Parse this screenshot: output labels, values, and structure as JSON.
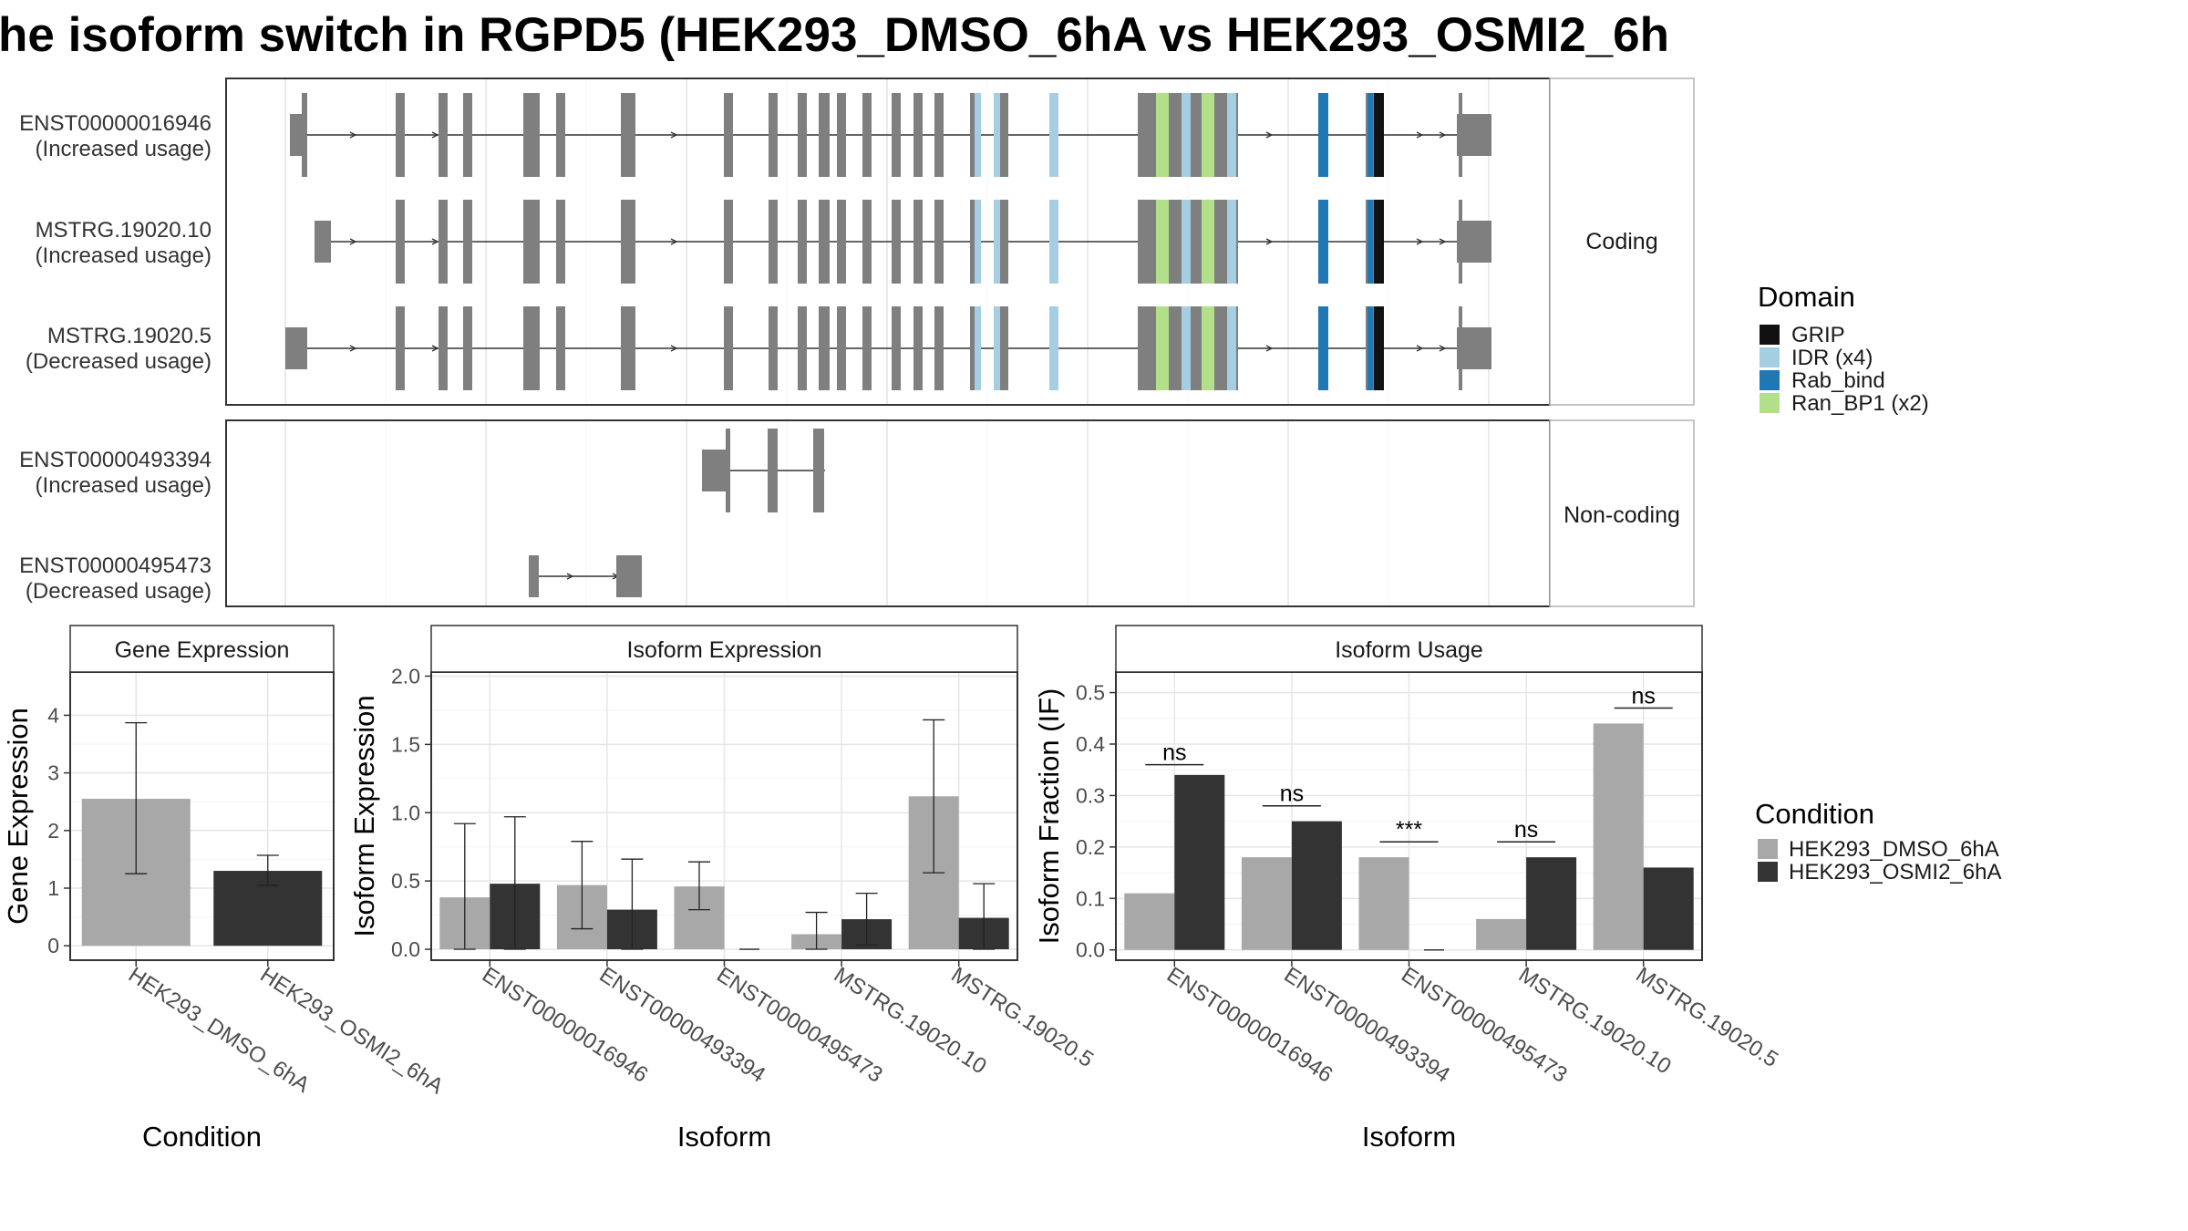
{
  "title": "he isoform switch in RGPD5 (HEK293_DMSO_6hA vs HEK293_OSMI2_6h",
  "colors": {
    "exon": "#7f7f7f",
    "dmso": "#a8a8a8",
    "osmi": "#333333",
    "GRIP": "#111111",
    "IDR": "#a6cee3",
    "Rab_bind": "#1f78b4",
    "Ran_BP1": "#b2df8a"
  },
  "structure_panels": {
    "coding_label": "Coding",
    "noncoding_label": "Non-coding",
    "transcripts": [
      {
        "id": "ENST00000016946",
        "usage": "(Increased usage)",
        "panel": "coding"
      },
      {
        "id": "MSTRG.19020.10",
        "usage": "(Increased usage)",
        "panel": "coding"
      },
      {
        "id": "MSTRG.19020.5",
        "usage": "(Decreased usage)",
        "panel": "coding"
      },
      {
        "id": "ENST00000493394",
        "usage": "(Increased usage)",
        "panel": "noncoding"
      },
      {
        "id": "ENST00000495473",
        "usage": "(Decreased usage)",
        "panel": "noncoding"
      }
    ]
  },
  "domain_legend": {
    "title": "Domain",
    "items": [
      {
        "label": "GRIP",
        "color": "#111111"
      },
      {
        "label": "IDR (x4)",
        "color": "#a6cee3"
      },
      {
        "label": "Rab_bind",
        "color": "#1f78b4"
      },
      {
        "label": "Ran_BP1 (x2)",
        "color": "#b2df8a"
      }
    ]
  },
  "condition_legend": {
    "title": "Condition",
    "items": [
      {
        "label": "HEK293_DMSO_6hA",
        "color": "#a8a8a8"
      },
      {
        "label": "HEK293_OSMI2_6hA",
        "color": "#333333"
      }
    ]
  },
  "chart_data": [
    {
      "type": "bar",
      "title": "Gene Expression",
      "xlabel": "Condition",
      "ylabel": "Gene Expression",
      "ylim": [
        -0.25,
        4.75
      ],
      "yticks": [
        0,
        1,
        2,
        3,
        4
      ],
      "categories": [
        "HEK293_DMSO_6hA",
        "HEK293_OSMI2_6hA"
      ],
      "values": [
        2.55,
        1.3
      ],
      "errors": [
        [
          1.25,
          3.87
        ],
        [
          1.05,
          1.57
        ]
      ]
    },
    {
      "type": "bar",
      "title": "Isoform Expression",
      "xlabel": "Isoform",
      "ylabel": "Isoform Expression",
      "ylim": [
        -0.08,
        2.03
      ],
      "yticks": [
        "0.0",
        "0.5",
        "1.0",
        "1.5",
        "2.0"
      ],
      "categories": [
        "ENST00000016946",
        "ENST00000493394",
        "ENST00000495473",
        "MSTRG.19020.10",
        "MSTRG.19020.5"
      ],
      "series": [
        {
          "name": "HEK293_DMSO_6hA",
          "values": [
            0.38,
            0.47,
            0.46,
            0.11,
            1.12
          ],
          "errors": [
            [
              0.0,
              0.92
            ],
            [
              0.15,
              0.79
            ],
            [
              0.29,
              0.64
            ],
            [
              0.0,
              0.27
            ],
            [
              0.56,
              1.68
            ]
          ]
        },
        {
          "name": "HEK293_OSMI2_6hA",
          "values": [
            0.48,
            0.29,
            0.0,
            0.22,
            0.23
          ],
          "errors": [
            [
              0.0,
              0.97
            ],
            [
              0.0,
              0.66
            ],
            [
              0.0,
              0.0
            ],
            [
              0.03,
              0.41
            ],
            [
              0.0,
              0.48
            ]
          ]
        }
      ]
    },
    {
      "type": "bar",
      "title": "Isoform Usage",
      "xlabel": "Isoform",
      "ylabel": "Isoform Fraction (IF)",
      "ylim": [
        -0.02,
        0.54
      ],
      "yticks": [
        "0.0",
        "0.1",
        "0.2",
        "0.3",
        "0.4",
        "0.5"
      ],
      "categories": [
        "ENST00000016946",
        "ENST00000493394",
        "ENST00000495473",
        "MSTRG.19020.10",
        "MSTRG.19020.5"
      ],
      "series": [
        {
          "name": "HEK293_DMSO_6hA",
          "values": [
            0.11,
            0.18,
            0.18,
            0.06,
            0.44
          ]
        },
        {
          "name": "HEK293_OSMI2_6hA",
          "values": [
            0.34,
            0.25,
            0.0,
            0.18,
            0.16
          ]
        }
      ],
      "significance": [
        {
          "label": "ns",
          "y": 0.36
        },
        {
          "label": "ns",
          "y": 0.28
        },
        {
          "label": "***",
          "y": 0.21
        },
        {
          "label": "ns",
          "y": 0.21
        },
        {
          "label": "ns",
          "y": 0.47
        }
      ]
    }
  ]
}
